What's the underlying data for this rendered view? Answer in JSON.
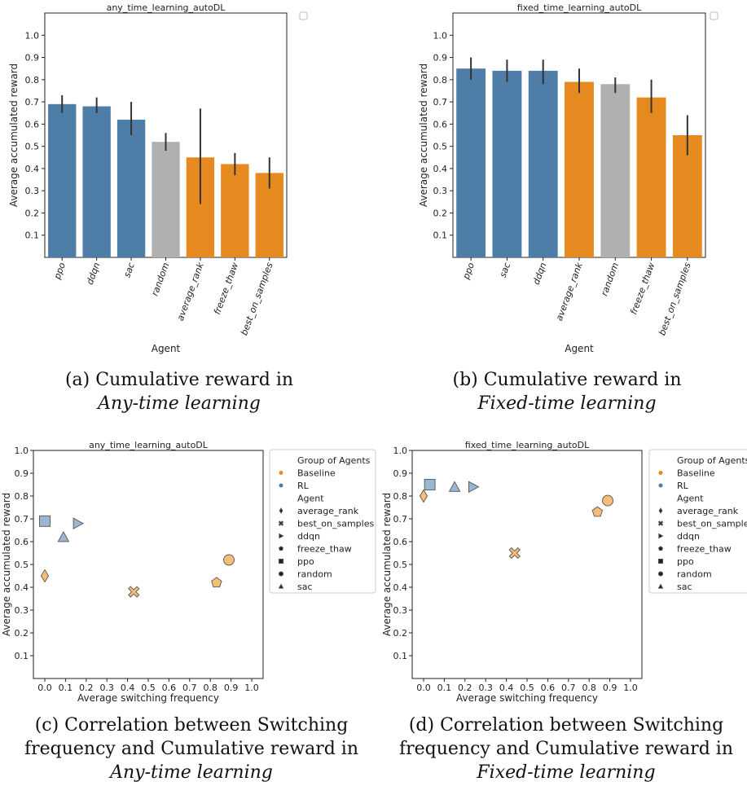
{
  "captions": {
    "a": {
      "main": "(a) Cumulative reward in",
      "emph": "Any-time learning"
    },
    "b": {
      "main": "(b) Cumulative reward in",
      "emph": "Fixed-time learning"
    },
    "c": {
      "main": "(c) Correlation between Switching frequency and Cumulative reward in",
      "emph": "Any-time learning"
    },
    "d": {
      "main": "(d) Correlation between Switching frequency and Cumulative reward in",
      "emph": "Fixed-time learning"
    }
  },
  "colors": {
    "rl": "#4e7ea8",
    "baseline": "#e6891e",
    "random": "#b0b0b0",
    "rl_light": "#9bb6d1",
    "baseline_light": "#f4be7a"
  },
  "chart_data": [
    {
      "type": "bar",
      "title": "any_time_learning_autoDL",
      "xlabel": "Agent",
      "ylabel": "Average accumulated reward",
      "ylim": [
        0,
        1.1
      ],
      "yticks": [
        0.1,
        0.2,
        0.3,
        0.4,
        0.5,
        0.6,
        0.7,
        0.8,
        0.9,
        1.0
      ],
      "categories": [
        "ppo",
        "ddqn",
        "sac",
        "random",
        "average_rank",
        "freeze_thaw",
        "best_on_samples"
      ],
      "values": [
        0.69,
        0.68,
        0.62,
        0.52,
        0.45,
        0.42,
        0.38
      ],
      "error_low": [
        0.65,
        0.65,
        0.55,
        0.48,
        0.24,
        0.37,
        0.31
      ],
      "error_high": [
        0.73,
        0.72,
        0.7,
        0.56,
        0.67,
        0.47,
        0.45
      ],
      "groups": [
        "RL",
        "RL",
        "RL",
        "random",
        "Baseline",
        "Baseline",
        "Baseline"
      ]
    },
    {
      "type": "bar",
      "title": "fixed_time_learning_autoDL",
      "xlabel": "Agent",
      "ylabel": "Average accumulated reward",
      "ylim": [
        0,
        1.1
      ],
      "yticks": [
        0.1,
        0.2,
        0.3,
        0.4,
        0.5,
        0.6,
        0.7,
        0.8,
        0.9,
        1.0
      ],
      "categories": [
        "ppo",
        "sac",
        "ddqn",
        "average_rank",
        "random",
        "freeze_thaw",
        "best_on_samples"
      ],
      "values": [
        0.85,
        0.84,
        0.84,
        0.79,
        0.78,
        0.72,
        0.55
      ],
      "error_low": [
        0.8,
        0.79,
        0.78,
        0.74,
        0.74,
        0.65,
        0.46
      ],
      "error_high": [
        0.9,
        0.89,
        0.89,
        0.85,
        0.81,
        0.8,
        0.64
      ],
      "groups": [
        "RL",
        "RL",
        "RL",
        "Baseline",
        "random",
        "Baseline",
        "Baseline"
      ]
    },
    {
      "type": "scatter",
      "title": "any_time_learning_autoDL",
      "xlabel": "Average switching frequency",
      "ylabel": "Average accumulated reward",
      "xlim": [
        0,
        1
      ],
      "ylim": [
        0,
        1
      ],
      "xticks": [
        0.0,
        0.1,
        0.2,
        0.3,
        0.4,
        0.5,
        0.6,
        0.7,
        0.8,
        0.9,
        1.0
      ],
      "yticks": [
        0.1,
        0.2,
        0.3,
        0.4,
        0.5,
        0.6,
        0.7,
        0.8,
        0.9,
        1.0
      ],
      "points": [
        {
          "agent": "ppo",
          "group": "RL",
          "x": 0.0,
          "y": 0.69
        },
        {
          "agent": "sac",
          "group": "RL",
          "x": 0.09,
          "y": 0.62
        },
        {
          "agent": "ddqn",
          "group": "RL",
          "x": 0.16,
          "y": 0.68
        },
        {
          "agent": "average_rank",
          "group": "Baseline",
          "x": 0.0,
          "y": 0.45
        },
        {
          "agent": "best_on_samples",
          "group": "Baseline",
          "x": 0.43,
          "y": 0.38
        },
        {
          "agent": "freeze_thaw",
          "group": "Baseline",
          "x": 0.83,
          "y": 0.42
        },
        {
          "agent": "random",
          "group": "Baseline",
          "x": 0.89,
          "y": 0.52
        }
      ],
      "legend": {
        "group_title": "Group of Agents",
        "groups": [
          "Baseline",
          "RL"
        ],
        "agent_title": "Agent",
        "agents": [
          "average_rank",
          "best_on_samples",
          "ddqn",
          "freeze_thaw",
          "ppo",
          "random",
          "sac"
        ]
      }
    },
    {
      "type": "scatter",
      "title": "fixed_time_learning_autoDL",
      "xlabel": "Average switching frequency",
      "ylabel": "Average accumulated reward",
      "xlim": [
        0,
        1
      ],
      "ylim": [
        0,
        1
      ],
      "xticks": [
        0.0,
        0.1,
        0.2,
        0.3,
        0.4,
        0.5,
        0.6,
        0.7,
        0.8,
        0.9,
        1.0
      ],
      "yticks": [
        0.1,
        0.2,
        0.3,
        0.4,
        0.5,
        0.6,
        0.7,
        0.8,
        0.9,
        1.0
      ],
      "points": [
        {
          "agent": "ppo",
          "group": "RL",
          "x": 0.03,
          "y": 0.85
        },
        {
          "agent": "sac",
          "group": "RL",
          "x": 0.15,
          "y": 0.84
        },
        {
          "agent": "ddqn",
          "group": "RL",
          "x": 0.24,
          "y": 0.84
        },
        {
          "agent": "average_rank",
          "group": "Baseline",
          "x": 0.0,
          "y": 0.8
        },
        {
          "agent": "best_on_samples",
          "group": "Baseline",
          "x": 0.44,
          "y": 0.55
        },
        {
          "agent": "freeze_thaw",
          "group": "Baseline",
          "x": 0.84,
          "y": 0.73
        },
        {
          "agent": "random",
          "group": "Baseline",
          "x": 0.89,
          "y": 0.78
        }
      ],
      "legend": {
        "group_title": "Group of Agents",
        "groups": [
          "Baseline",
          "RL"
        ],
        "agent_title": "Agent",
        "agents": [
          "average_rank",
          "best_on_sample",
          "ddqn",
          "freeze_thaw",
          "ppo",
          "random",
          "sac"
        ]
      }
    }
  ]
}
